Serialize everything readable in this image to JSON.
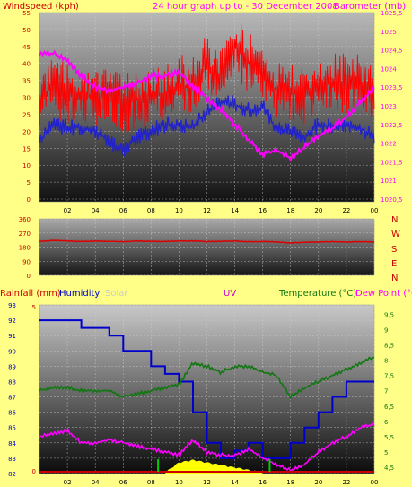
{
  "colors": {
    "background": "#ffff88",
    "wind_gust": "#ff0000",
    "wind_avg": "#2222cc",
    "barometer": "#ff00ff",
    "direction": "#dd0000",
    "rainfall": "#cc0000",
    "humidity": "#0000cc",
    "solar": "#ffff00",
    "uv": "#cc00cc",
    "temperature": "#117711",
    "dew_point": "#ff00ff"
  },
  "header": {
    "windspeed": "Windspeed (kph)",
    "barometer": "Barometer (mb)",
    "title": "24 hour graph up to - 30 December 2008"
  },
  "mid": {
    "compass": [
      "N",
      "W",
      "S",
      "E",
      "N"
    ]
  },
  "lower": {
    "rainfall": "Rainfall (mm)",
    "humidity": "Humidity",
    "solar": "Solar",
    "uv": "UV",
    "temperature": "Temperature (°C)",
    "dew_point": "Dew Point (°C)"
  },
  "chart_data": [
    {
      "type": "line",
      "id": "wind_barometer",
      "ylabel": "Windspeed (kph)",
      "y2label": "Barometer (mb)",
      "x_ticks": [
        "02",
        "04",
        "06",
        "08",
        "10",
        "12",
        "14",
        "16",
        "18",
        "20",
        "22",
        "00"
      ],
      "ylim": [
        0,
        55
      ],
      "y_ticks": [
        "0",
        "5",
        "10",
        "15",
        "20",
        "25",
        "30",
        "35",
        "40",
        "45",
        "50",
        "55"
      ],
      "y2lim": [
        1020.5,
        1025.5
      ],
      "y2_ticks": [
        "1020,5",
        "1021",
        "1021,5",
        "1022",
        "1022,5",
        "1023",
        "1023,5",
        "1024",
        "1024,5",
        "1025",
        "1025,5"
      ],
      "x": [
        0,
        1,
        2,
        3,
        4,
        5,
        6,
        7,
        8,
        9,
        10,
        11,
        12,
        13,
        14,
        15,
        16,
        17,
        18,
        19,
        20,
        21,
        22,
        23,
        24
      ],
      "series": [
        {
          "values": [
            30,
            33,
            31,
            30,
            30,
            30,
            28,
            30,
            30,
            31,
            34,
            33,
            40,
            36,
            45,
            40,
            38,
            32,
            32,
            30,
            34,
            35,
            34,
            35,
            30
          ]
        },
        {
          "values": [
            17,
            22,
            21,
            21,
            20,
            17,
            14,
            18,
            20,
            22,
            22,
            21,
            26,
            29,
            28,
            26,
            27,
            21,
            20,
            18,
            22,
            21,
            22,
            21,
            18
          ]
        },
        {
          "values": [
            1024.4,
            1024.4,
            1024.2,
            1023.8,
            1023.5,
            1023.4,
            1023.5,
            1023.6,
            1023.8,
            1023.8,
            1023.9,
            1023.5,
            1023.2,
            1022.9,
            1022.5,
            1022.1,
            1021.7,
            1021.8,
            1021.6,
            1021.9,
            1022.2,
            1022.4,
            1022.7,
            1023.1,
            1023.5
          ]
        }
      ]
    },
    {
      "type": "line",
      "id": "wind_direction",
      "y_ticks": [
        "0",
        "90",
        "180",
        "270",
        "360"
      ],
      "ylim": [
        0,
        360
      ],
      "x": [
        0,
        1,
        2,
        3,
        4,
        5,
        6,
        7,
        8,
        9,
        10,
        11,
        12,
        13,
        14,
        15,
        16,
        17,
        18,
        19,
        20,
        21,
        22,
        23,
        24
      ],
      "series": [
        {
          "values": [
            215,
            222,
            218,
            215,
            218,
            216,
            214,
            218,
            216,
            215,
            218,
            218,
            215,
            216,
            218,
            214,
            215,
            212,
            206,
            210,
            212,
            214,
            212,
            214,
            213
          ]
        }
      ]
    },
    {
      "type": "line",
      "id": "humidity_temperature",
      "x_ticks": [
        "02",
        "04",
        "06",
        "08",
        "10",
        "12",
        "14",
        "16",
        "18",
        "20",
        "22",
        "00"
      ],
      "humidity_ticks": [
        "82",
        "83",
        "84",
        "85",
        "86",
        "87",
        "88",
        "89",
        "90",
        "91",
        "92",
        "93"
      ],
      "humidity_lim": [
        82,
        93
      ],
      "rain_ticks": [
        "0",
        "5"
      ],
      "temp_ticks": [
        "4,5",
        "5",
        "5,5",
        "6",
        "6,5",
        "7",
        "7,5",
        "8",
        "8,5",
        "9",
        "9,5"
      ],
      "temp_lim": [
        4.3,
        9.8
      ],
      "x": [
        0,
        1,
        2,
        3,
        4,
        5,
        6,
        7,
        8,
        9,
        10,
        11,
        12,
        13,
        14,
        15,
        16,
        17,
        18,
        19,
        20,
        21,
        22,
        23,
        24
      ],
      "series": [
        {
          "values": [
            92,
            92,
            92,
            91.5,
            91.5,
            91,
            90,
            90,
            89,
            88.5,
            88,
            86,
            84,
            83,
            83.5,
            84,
            83,
            83,
            84,
            85,
            86,
            87,
            88,
            88,
            88
          ]
        },
        {
          "values": [
            7,
            7.1,
            7.1,
            7,
            7,
            7,
            6.8,
            6.9,
            7.0,
            7.1,
            7.2,
            7.9,
            7.8,
            7.6,
            7.8,
            7.8,
            7.6,
            7.5,
            6.8,
            7.1,
            7.3,
            7.5,
            7.7,
            7.9,
            8.1
          ]
        },
        {
          "values": [
            5.5,
            5.6,
            5.7,
            5.3,
            5.3,
            5.4,
            5.3,
            5.2,
            5.1,
            5.0,
            4.9,
            5.4,
            5.0,
            4.9,
            4.9,
            5.1,
            4.8,
            4.6,
            4.4,
            4.6,
            5.0,
            5.3,
            5.5,
            5.8,
            5.9
          ]
        },
        {
          "values": [
            0,
            0,
            0,
            0,
            0,
            0,
            0,
            0,
            0,
            0,
            0.4,
            0.5,
            0.4,
            0.3,
            0.2,
            0.1,
            0,
            0,
            0,
            0,
            0,
            0,
            0,
            0,
            0
          ]
        }
      ]
    }
  ]
}
